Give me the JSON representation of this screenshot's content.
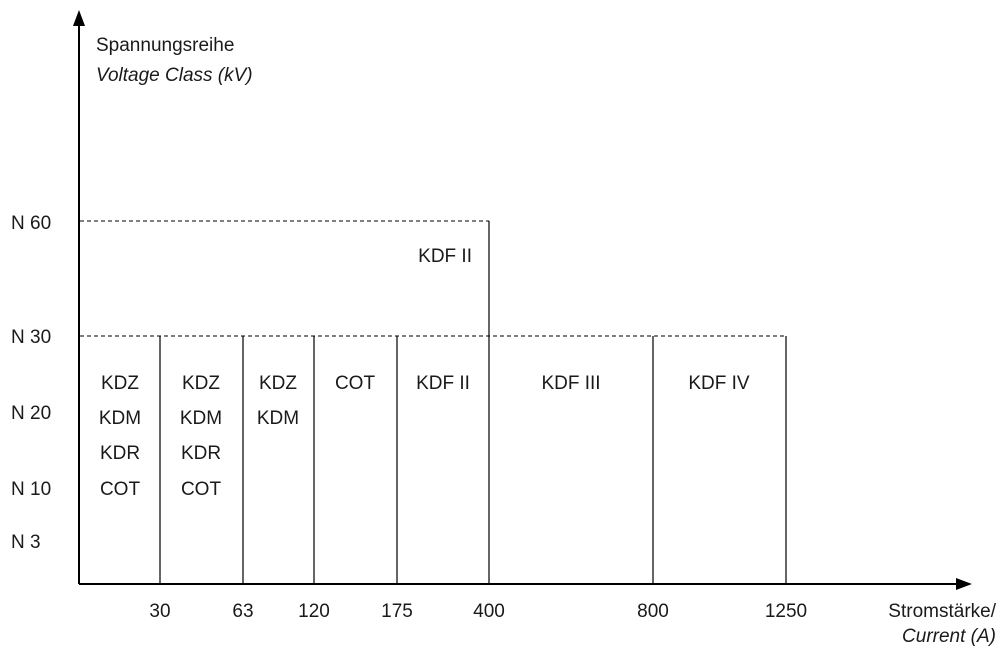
{
  "y_axis": {
    "title": "Spannungsreihe",
    "subtitle": "Voltage Class (kV)",
    "ticks": [
      "N 60",
      "N 30",
      "N 20",
      "N 10",
      "N 3"
    ]
  },
  "x_axis": {
    "title": "Stromstärke/",
    "subtitle": "Current (A)",
    "ticks": [
      "30",
      "63",
      "120",
      "175",
      "400",
      "800",
      "1250"
    ]
  },
  "regions": [
    {
      "current_from": "0",
      "current_to": "30",
      "voltage_max": "N 30",
      "types": [
        "KDZ",
        "KDM",
        "KDR",
        "COT"
      ]
    },
    {
      "current_from": "30",
      "current_to": "63",
      "voltage_max": "N 30",
      "types": [
        "KDZ",
        "KDM",
        "KDR",
        "COT"
      ]
    },
    {
      "current_from": "63",
      "current_to": "120",
      "voltage_max": "N 30",
      "types": [
        "KDZ",
        "KDM"
      ]
    },
    {
      "current_from": "120",
      "current_to": "175",
      "voltage_max": "N 30",
      "types": [
        "COT"
      ]
    },
    {
      "current_from": "175",
      "current_to": "400",
      "voltage_max": "N 30",
      "types": [
        "KDF II"
      ]
    },
    {
      "current_from": "400",
      "current_to": "800",
      "voltage_max": "N 30",
      "types": [
        "KDF III"
      ]
    },
    {
      "current_from": "800",
      "current_to": "1250",
      "voltage_max": "N 30",
      "types": [
        "KDF IV"
      ]
    },
    {
      "current_from": "0",
      "current_to": "400",
      "voltage_max": "N 60",
      "types": [
        "KDF II"
      ]
    }
  ]
}
